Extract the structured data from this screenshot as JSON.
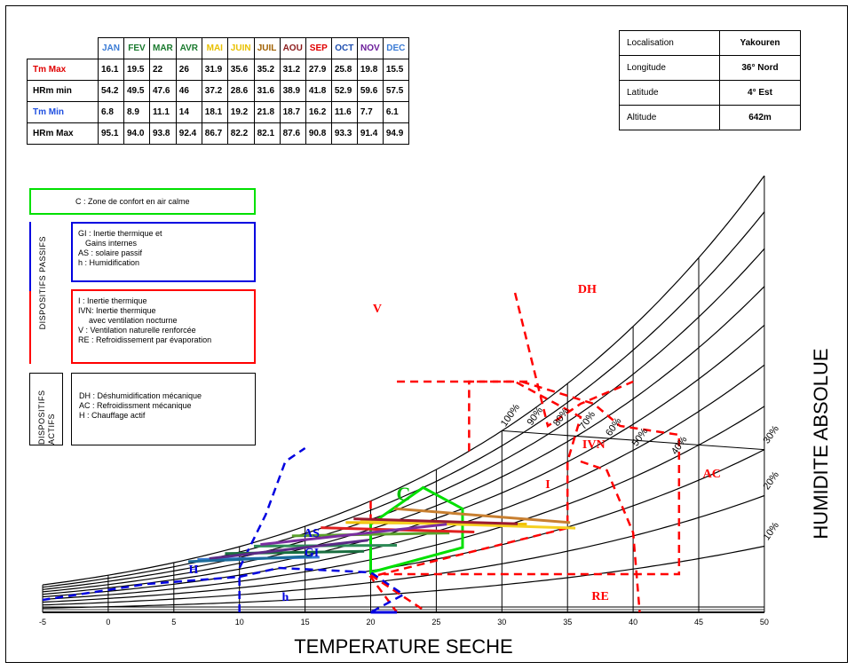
{
  "climate_table": {
    "months": [
      "JAN",
      "FEV",
      "MAR",
      "AVR",
      "MAI",
      "JUIN",
      "JUIL",
      "AOU",
      "SEP",
      "OCT",
      "NOV",
      "DEC"
    ],
    "month_colors": [
      "#3a7bd5",
      "#1a7a2e",
      "#1a7a2e",
      "#1a7a2e",
      "#e8c000",
      "#e8c000",
      "#a06000",
      "#8b1a1a",
      "#e00000",
      "#1f4fb0",
      "#6a1b9a",
      "#3a7bd5"
    ],
    "rows": [
      {
        "label": "Tm Max",
        "color": "#e00000",
        "values": [
          "16.1",
          "19.5",
          "22",
          "26",
          "31.9",
          "35.6",
          "35.2",
          "31.2",
          "27.9",
          "25.8",
          "19.8",
          "15.5"
        ]
      },
      {
        "label": "HRm min",
        "color": "#000000",
        "values": [
          "54.2",
          "49.5",
          "47.6",
          "46",
          "37.2",
          "28.6",
          "31.6",
          "38.9",
          "41.8",
          "52.9",
          "59.6",
          "57.5"
        ]
      },
      {
        "label": "Tm Min",
        "color": "#1f4fe0",
        "values": [
          "6.8",
          "8.9",
          "11.1",
          "14",
          "18.1",
          "19.2",
          "21.8",
          "18.7",
          "16.2",
          "11.6",
          "7.7",
          "6.1"
        ]
      },
      {
        "label": "HRm Max",
        "color": "#000000",
        "values": [
          "95.1",
          "94.0",
          "93.8",
          "92.4",
          "86.7",
          "82.2",
          "82.1",
          "87.6",
          "90.8",
          "93.3",
          "91.4",
          "94.9"
        ]
      }
    ]
  },
  "location_table": [
    {
      "key": "Localisation",
      "value": "Yakouren"
    },
    {
      "key": "Longitude",
      "value": "36° Nord"
    },
    {
      "key": "Latitude",
      "value": "4° Est"
    },
    {
      "key": "Altitude",
      "value": "642m"
    }
  ],
  "legend": {
    "comfort": "C   : Zone de confort en air calme",
    "passifs_label": "DISPOSITIFS PASSIFS",
    "passifs_blue": [
      "GI  : Inertie thermique et",
      "      Gains internes",
      "AS  :  solaire passif",
      "h    :  Humidification"
    ],
    "passifs_red": [
      "I     :  Inertie thermique",
      "IVN:  Inertie thermique",
      "        avec ventilation nocturne",
      "V    :  Ventilation naturelle renforcée",
      "RE :  Refroidissement par évaporation"
    ],
    "actifs_label": "DISPOSITIFS ACTIFS",
    "actifs": [
      "DH : Déshumidification mécanique",
      "AC : Refroidissment mécanique",
      "H   :  Chauffage actif"
    ]
  },
  "chart_data": {
    "type": "psychrometric",
    "xlabel": "TEMPERATURE SECHE",
    "ylabel": "HUMIDITE ABSOLUE",
    "xlim": [
      -5,
      50
    ],
    "x_ticks": [
      "-5",
      "0",
      "5",
      "10",
      "15",
      "20",
      "25",
      "30",
      "35",
      "40",
      "45",
      "50"
    ],
    "rh_curves": [
      "100%",
      "90%",
      "80%",
      "70%",
      "60%",
      "50%",
      "40%",
      "30%",
      "20%",
      "10%"
    ],
    "zone_labels": [
      "C",
      "V",
      "DH",
      "IVN",
      "I",
      "AC",
      "AS",
      "GI",
      "H",
      "h",
      "RE"
    ],
    "colors": {
      "comfort": "#00e000",
      "passive_red": "#ff0000",
      "passive_blue": "#0000e0"
    },
    "monthly_lines": [
      {
        "month": "JAN",
        "tmin": 6.8,
        "tmax": 16.1,
        "hr_max": 95.1,
        "hr_min": 54.2,
        "color": "#3a7bd5"
      },
      {
        "month": "FEV",
        "tmin": 8.9,
        "tmax": 19.5,
        "hr_max": 94.0,
        "hr_min": 49.5,
        "color": "#1a6e40"
      },
      {
        "month": "MAR",
        "tmin": 11.1,
        "tmax": 22,
        "hr_max": 93.8,
        "hr_min": 47.6,
        "color": "#2e8b57"
      },
      {
        "month": "AVR",
        "tmin": 14,
        "tmax": 26,
        "hr_max": 92.4,
        "hr_min": 46,
        "color": "#5aa02c"
      },
      {
        "month": "MAI",
        "tmin": 18.1,
        "tmax": 31.9,
        "hr_max": 86.7,
        "hr_min": 37.2,
        "color": "#f0c000"
      },
      {
        "month": "JUIN",
        "tmin": 19.2,
        "tmax": 35.6,
        "hr_max": 82.2,
        "hr_min": 28.6,
        "color": "#f5d020"
      },
      {
        "month": "JUIL",
        "tmin": 21.8,
        "tmax": 35.2,
        "hr_max": 82.1,
        "hr_min": 31.6,
        "color": "#c87f30"
      },
      {
        "month": "AOU",
        "tmin": 18.7,
        "tmax": 31.2,
        "hr_max": 87.6,
        "hr_min": 38.9,
        "color": "#9b1b30"
      },
      {
        "month": "SEP",
        "tmin": 16.2,
        "tmax": 27.9,
        "hr_max": 90.8,
        "hr_min": 41.8,
        "color": "#e02020"
      },
      {
        "month": "OCT",
        "tmin": 11.6,
        "tmax": 25.8,
        "hr_max": 93.3,
        "hr_min": 52.9,
        "color": "#7b2fa0"
      },
      {
        "month": "NOV",
        "tmin": 7.7,
        "tmax": 19.8,
        "hr_max": 91.4,
        "hr_min": 59.6,
        "color": "#5b2a86"
      },
      {
        "month": "DEC",
        "tmin": 6.1,
        "tmax": 15.5,
        "hr_max": 94.9,
        "hr_min": 57.5,
        "color": "#1a6b9a"
      }
    ]
  }
}
